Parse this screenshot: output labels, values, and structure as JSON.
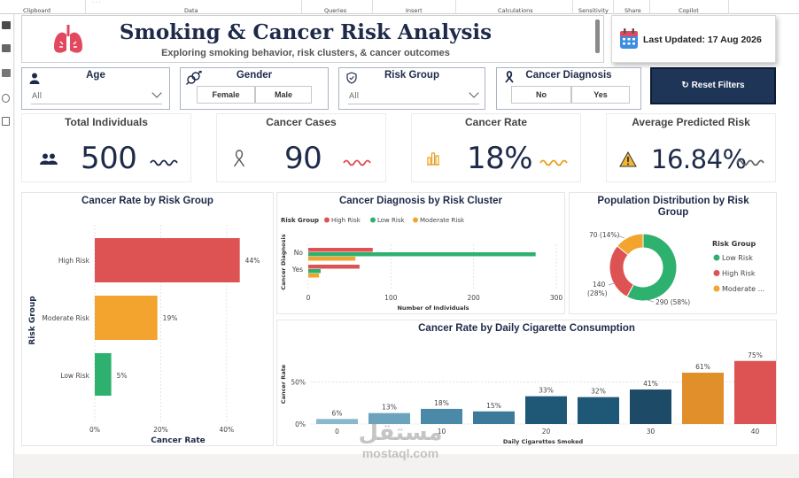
{
  "ribbon": {
    "groups": [
      "Clipboard",
      "Data",
      "Queries",
      "Insert",
      "Calculations",
      "Sensitivity",
      "Share",
      "Copilot"
    ]
  },
  "header": {
    "title": "Smoking & Cancer Risk Analysis",
    "subtitle": "Exploring smoking behavior, risk clusters, & cancer outcomes",
    "last_updated": "Last Updated: 17 Aug 2026"
  },
  "filters": {
    "age": {
      "label": "Age",
      "value": "All"
    },
    "gender": {
      "label": "Gender",
      "options": [
        "Female",
        "Male"
      ]
    },
    "risk_group": {
      "label": "Risk Group",
      "value": "All"
    },
    "cancer_diagnosis": {
      "label": "Cancer Diagnosis",
      "options": [
        "No",
        "Yes"
      ]
    },
    "reset_label": "↻ Reset Filters"
  },
  "kpis": [
    {
      "title": "Total Individuals",
      "value": "500",
      "icon": "people-icon"
    },
    {
      "title": "Cancer Cases",
      "value": "90",
      "icon": "ribbon-icon"
    },
    {
      "title": "Cancer Rate",
      "value": "18%",
      "icon": "bar-chart-icon"
    },
    {
      "title": "Average Predicted Risk",
      "value": "16.84%",
      "icon": "warning-icon"
    }
  ],
  "colors": {
    "high": "#dd5353",
    "moderate": "#f2a42e",
    "low": "#2eb06e",
    "navy": "#1e2a4a"
  },
  "chart_data": [
    {
      "type": "bar",
      "orientation": "horizontal",
      "title": "Cancer Rate by Risk Group",
      "xlabel": "Cancer Rate",
      "ylabel": "Risk Group",
      "categories": [
        "High Risk",
        "Moderate Risk",
        "Low Risk"
      ],
      "values": [
        44,
        19,
        5
      ],
      "data_labels": [
        "44%",
        "19%",
        "5%"
      ],
      "x_ticks": [
        "0%",
        "20%",
        "40%"
      ],
      "xlim": [
        0,
        0.5
      ]
    },
    {
      "type": "bar",
      "orientation": "horizontal",
      "title": "Cancer Diagnosis by Risk Cluster",
      "xlabel": "Number of Individuals",
      "ylabel": "Cancer Diagnosis",
      "legend_title": "Risk Group",
      "legend_position": "top-left",
      "categories": [
        "No",
        "Yes"
      ],
      "series": [
        {
          "name": "High Risk",
          "values": [
            78,
            62
          ]
        },
        {
          "name": "Low Risk",
          "values": [
            275,
            15
          ]
        },
        {
          "name": "Moderate Risk",
          "values": [
            57,
            13
          ]
        }
      ],
      "x_ticks": [
        "0",
        "100",
        "200",
        "300"
      ],
      "xlim": [
        0,
        300
      ]
    },
    {
      "type": "pie",
      "title": "Population Distribution by Risk Group",
      "legend_title": "Risk Group",
      "legend_position": "right",
      "categories": [
        "Low Risk",
        "High Risk",
        "Moderate ..."
      ],
      "values": [
        290,
        140,
        70
      ],
      "data_labels": [
        "290 (58%)",
        "140 (28%)",
        "70 (14%)"
      ]
    },
    {
      "type": "bar",
      "title": "Cancer Rate by Daily Cigarette Consumption",
      "xlabel": "Daily Cigarettes Smoked",
      "ylabel": "Cancer Rate",
      "categories": [
        0,
        5,
        10,
        15,
        20,
        25,
        30,
        35,
        40
      ],
      "values": [
        6,
        13,
        18,
        15,
        33,
        32,
        41,
        61,
        75
      ],
      "data_labels": [
        "6%",
        "13%",
        "18%",
        "15%",
        "33%",
        "32%",
        "41%",
        "61%",
        "75%"
      ],
      "x_ticks": [
        "0",
        "10",
        "20",
        "30",
        "40"
      ],
      "y_ticks": [
        "0%",
        "50%"
      ],
      "ylim": [
        0,
        80
      ]
    }
  ],
  "watermark": {
    "arabic": "مستقل",
    "latin": "mostaql.com"
  }
}
